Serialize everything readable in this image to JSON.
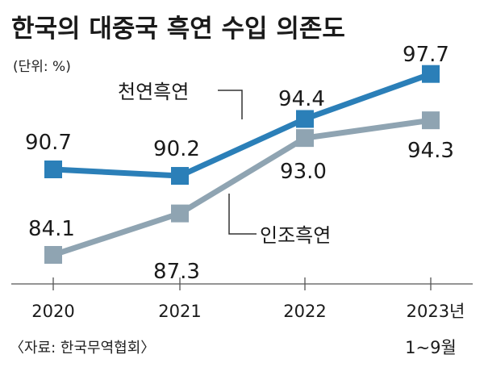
{
  "chart_data": {
    "type": "line",
    "title": "한국의 대중국 흑연 수입 의존도",
    "unit": "(단위: %)",
    "categories": [
      "2020",
      "2021",
      "2022",
      "2023년"
    ],
    "category_sub": [
      "",
      "",
      "",
      "1~9월"
    ],
    "ylim": [
      80,
      100
    ],
    "series": [
      {
        "name": "천연흑연",
        "values": [
          90.7,
          90.2,
          94.4,
          97.7
        ],
        "labels": [
          "90.7",
          "90.2",
          "94.4",
          "97.7"
        ],
        "color": "#2b7fb8"
      },
      {
        "name": "인조흑연",
        "values": [
          84.1,
          87.3,
          93.0,
          94.3
        ],
        "labels": [
          "84.1",
          "87.3",
          "93.0",
          "94.3"
        ],
        "color": "#8fa4b2"
      }
    ],
    "source": "〈자료: 한국무역협회〉",
    "grid": false,
    "legend": "inline-callouts"
  }
}
